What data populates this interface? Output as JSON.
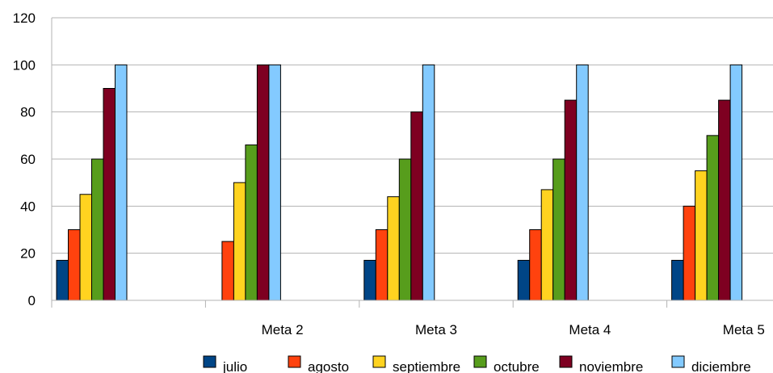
{
  "chart_data": {
    "type": "bar",
    "categories": [
      "",
      "Meta 2",
      "Meta 3",
      "Meta 4",
      "Meta 5"
    ],
    "series": [
      {
        "name": "julio",
        "color": "#004586",
        "values": [
          17,
          0,
          17,
          17,
          17
        ]
      },
      {
        "name": "agosto",
        "color": "#ff420e",
        "values": [
          30,
          25,
          30,
          30,
          40
        ]
      },
      {
        "name": "septiembre",
        "color": "#ffd320",
        "values": [
          45,
          50,
          44,
          47,
          55
        ]
      },
      {
        "name": "octubre",
        "color": "#579d1c",
        "values": [
          60,
          66,
          60,
          60,
          70
        ]
      },
      {
        "name": "noviembre",
        "color": "#7e0021",
        "values": [
          90,
          100,
          80,
          85,
          85
        ]
      },
      {
        "name": "diciembre",
        "color": "#83caff",
        "values": [
          100,
          100,
          100,
          100,
          100
        ]
      }
    ],
    "ylim": [
      0,
      120
    ],
    "yticks": [
      0,
      20,
      40,
      60,
      80,
      100,
      120
    ],
    "grid": true,
    "legend": "bottom"
  }
}
